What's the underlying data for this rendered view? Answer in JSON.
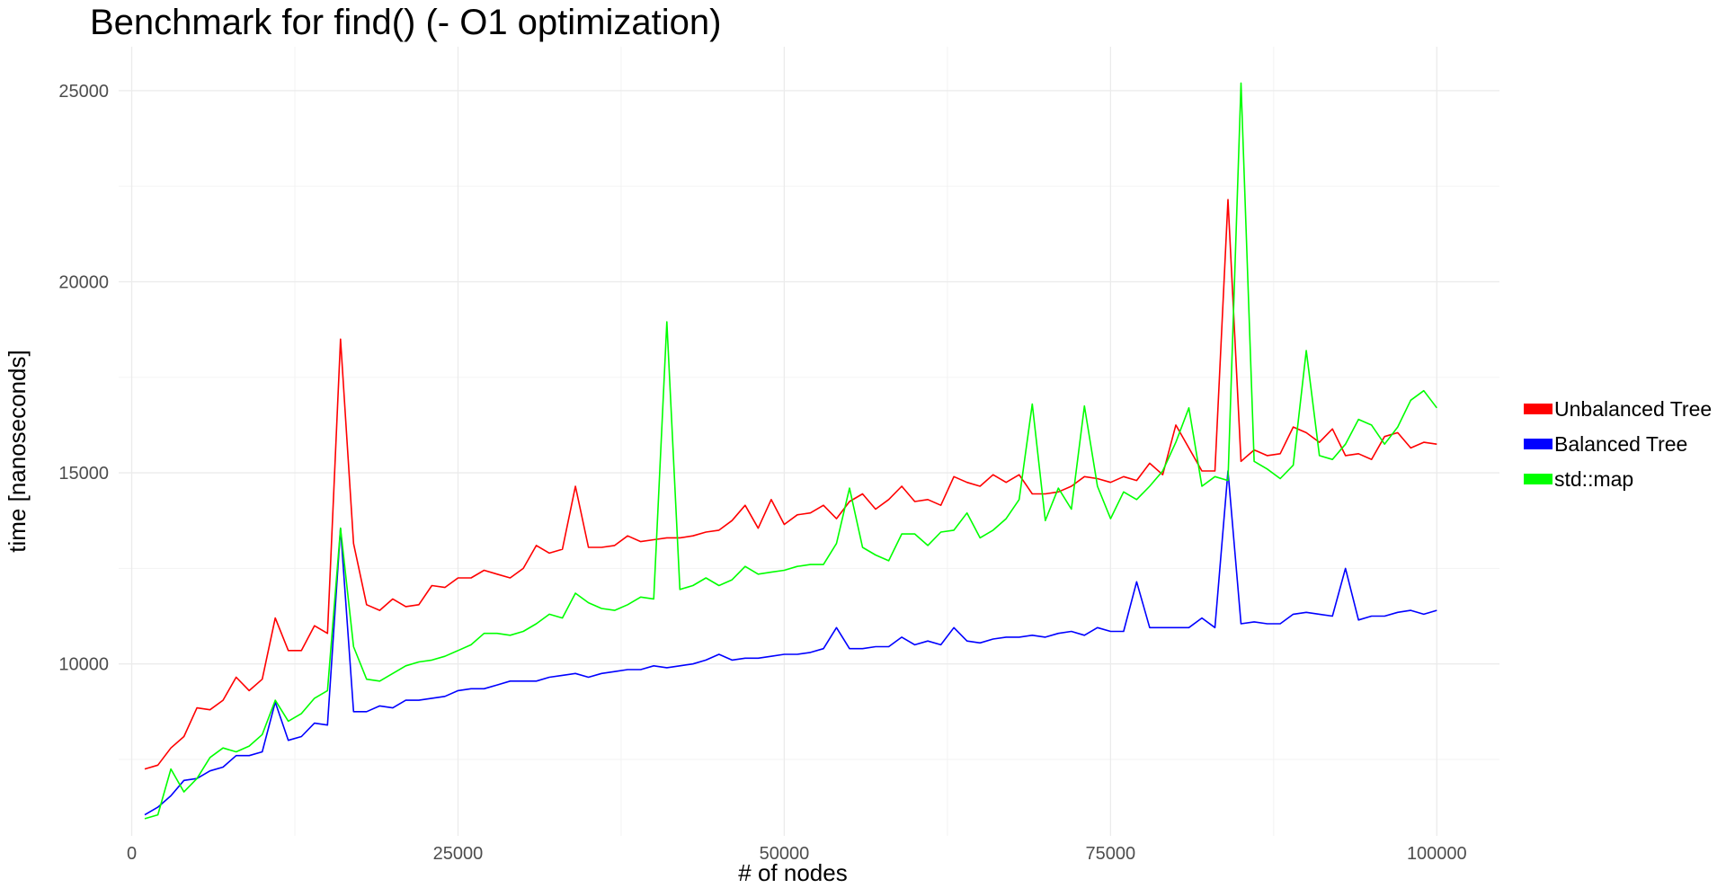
{
  "chart_data": {
    "type": "line",
    "title": "Benchmark for find() (- O1 optimization)",
    "xlabel": "# of nodes",
    "ylabel": "time [nanoseconds]",
    "xlim": [
      -1000,
      104800
    ],
    "ylim": [
      5500,
      26150
    ],
    "x_ticks": [
      0,
      25000,
      50000,
      75000,
      100000
    ],
    "x_tick_labels": [
      "0",
      "25000",
      "50000",
      "75000",
      "100000"
    ],
    "y_ticks": [
      10000,
      15000,
      20000,
      25000
    ],
    "y_tick_labels": [
      "10000",
      "15000",
      "20000",
      "25000"
    ],
    "x_minor": [
      12500,
      37500,
      62500,
      87500
    ],
    "y_minor": [
      7500,
      12500,
      17500,
      22500
    ],
    "grid": true,
    "legend_position": "right",
    "x": [
      1000,
      2000,
      3000,
      4000,
      5000,
      6000,
      7000,
      8000,
      9000,
      10000,
      11000,
      12000,
      13000,
      14000,
      15000,
      16000,
      17000,
      18000,
      19000,
      20000,
      21000,
      22000,
      23000,
      24000,
      25000,
      26000,
      27000,
      28000,
      29000,
      30000,
      31000,
      32000,
      33000,
      34000,
      35000,
      36000,
      37000,
      38000,
      39000,
      40000,
      41000,
      42000,
      43000,
      44000,
      45000,
      46000,
      47000,
      48000,
      49000,
      50000,
      51000,
      52000,
      53000,
      54000,
      55000,
      56000,
      57000,
      58000,
      59000,
      60000,
      61000,
      62000,
      63000,
      64000,
      65000,
      66000,
      67000,
      68000,
      69000,
      70000,
      71000,
      72000,
      73000,
      74000,
      75000,
      76000,
      77000,
      78000,
      79000,
      80000,
      81000,
      82000,
      83000,
      84000,
      85000,
      86000,
      87000,
      88000,
      89000,
      90000,
      91000,
      92000,
      93000,
      94000,
      95000,
      96000,
      97000,
      98000,
      99000,
      100000
    ],
    "series": [
      {
        "name": "Unbalanced Tree",
        "color": "#ff0000",
        "values": [
          7250,
          7350,
          7800,
          8100,
          8850,
          8800,
          9050,
          9650,
          9300,
          9600,
          11200,
          10350,
          10350,
          11000,
          10800,
          18500,
          13150,
          11550,
          11400,
          11700,
          11500,
          11550,
          12050,
          12000,
          12250,
          12250,
          12450,
          12350,
          12250,
          12500,
          13100,
          12900,
          13000,
          14650,
          13050,
          13050,
          13100,
          13350,
          13200,
          13250,
          13300,
          13300,
          13350,
          13450,
          13500,
          13750,
          14150,
          13550,
          14300,
          13650,
          13900,
          13950,
          14150,
          13800,
          14250,
          14450,
          14050,
          14300,
          14650,
          14250,
          14300,
          14150,
          14900,
          14750,
          14650,
          14950,
          14750,
          14950,
          14450,
          14450,
          14500,
          14650,
          14900,
          14850,
          14750,
          14900,
          14800,
          15250,
          14950,
          16250,
          15650,
          15050,
          15050,
          22150,
          15300,
          15600,
          15450,
          15500,
          16200,
          16050,
          15800,
          16150,
          15450,
          15500,
          15350,
          15950,
          16050,
          15650,
          15800,
          15750
        ]
      },
      {
        "name": "Balanced Tree",
        "color": "#0000ff",
        "values": [
          6050,
          6250,
          6550,
          6950,
          7000,
          7200,
          7300,
          7600,
          7600,
          7700,
          9000,
          8000,
          8100,
          8450,
          8400,
          13550,
          8750,
          8750,
          8900,
          8850,
          9050,
          9050,
          9100,
          9150,
          9300,
          9350,
          9350,
          9450,
          9550,
          9550,
          9550,
          9650,
          9700,
          9750,
          9650,
          9750,
          9800,
          9850,
          9850,
          9950,
          9900,
          9950,
          10000,
          10100,
          10250,
          10100,
          10150,
          10150,
          10200,
          10250,
          10250,
          10300,
          10400,
          10950,
          10400,
          10400,
          10450,
          10450,
          10700,
          10500,
          10600,
          10500,
          10950,
          10600,
          10550,
          10650,
          10700,
          10700,
          10750,
          10700,
          10800,
          10850,
          10750,
          10950,
          10850,
          10850,
          12150,
          10950,
          10950,
          10950,
          10950,
          11200,
          10950,
          15050,
          11050,
          11100,
          11050,
          11050,
          11300,
          11350,
          11300,
          11250,
          12500,
          11150,
          11250,
          11250,
          11350,
          11400,
          11300,
          11400
        ]
      },
      {
        "name": "std::map",
        "color": "#00ff00",
        "values": [
          5950,
          6050,
          7250,
          6650,
          7000,
          7550,
          7800,
          7700,
          7850,
          8150,
          9050,
          8500,
          8700,
          9100,
          9300,
          13550,
          10450,
          9600,
          9550,
          9750,
          9950,
          10050,
          10100,
          10200,
          10350,
          10500,
          10800,
          10800,
          10750,
          10850,
          11050,
          11300,
          11200,
          11850,
          11600,
          11450,
          11400,
          11550,
          11750,
          11700,
          18950,
          11950,
          12050,
          12250,
          12050,
          12200,
          12550,
          12350,
          12400,
          12450,
          12550,
          12600,
          12600,
          13150,
          14600,
          13050,
          12850,
          12700,
          13400,
          13400,
          13100,
          13450,
          13500,
          13950,
          13300,
          13500,
          13800,
          14300,
          16800,
          13750,
          14600,
          14050,
          16750,
          14650,
          13800,
          14500,
          14300,
          14650,
          15050,
          15800,
          16700,
          14650,
          14900,
          14800,
          25200,
          15300,
          15100,
          14850,
          15200,
          18200,
          15450,
          15350,
          15750,
          16400,
          16250,
          15750,
          16200,
          16900,
          17150,
          16700
        ]
      }
    ]
  }
}
